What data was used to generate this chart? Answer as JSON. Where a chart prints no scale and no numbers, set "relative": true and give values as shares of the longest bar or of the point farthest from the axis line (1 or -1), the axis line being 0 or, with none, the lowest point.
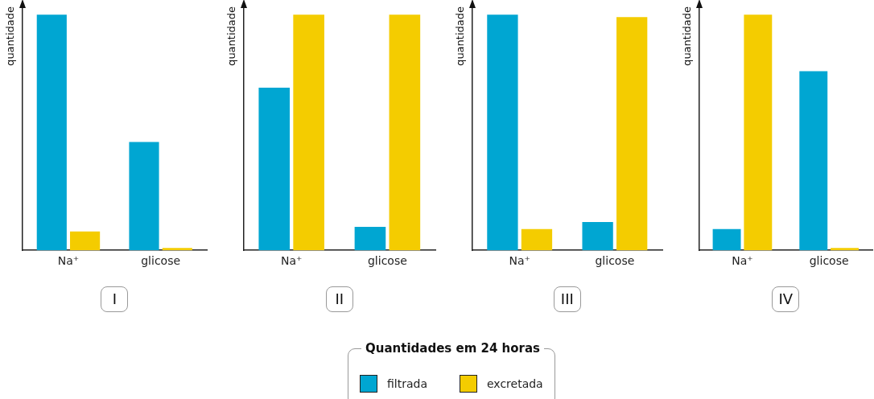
{
  "chart_data": [
    {
      "type": "bar",
      "relative": true,
      "ylabel": "quantidade",
      "xlabel": "I",
      "categories": [
        "Na⁺",
        "glicose"
      ],
      "legend": "bottom",
      "legend_title": "Quantidades em 24 horas",
      "series": [
        {
          "name": "filtrada",
          "color": "#00a6d2",
          "values": [
            1,
            0.46
          ]
        },
        {
          "name": "excretada",
          "color": "#f4cc00",
          "values": [
            0.08,
            0.01
          ]
        }
      ]
    },
    {
      "type": "bar",
      "relative": true,
      "ylabel": "quantidade",
      "xlabel": "II",
      "categories": [
        "Na⁺",
        "glicose"
      ],
      "series": [
        {
          "color": "#00a6d2",
          "values": [
            0.69,
            0.1
          ]
        },
        {
          "color": "#f4cc00",
          "values": [
            1,
            1
          ]
        }
      ]
    },
    {
      "type": "bar",
      "relative": true,
      "ylabel": "quantidade",
      "xlabel": "III",
      "categories": [
        "Na⁺",
        "glicose"
      ],
      "series": [
        {
          "color": "#00a6d2",
          "values": [
            1,
            0.12
          ]
        },
        {
          "color": "#f4cc00",
          "values": [
            0.09,
            0.99
          ]
        }
      ]
    },
    {
      "type": "bar",
      "relative": true,
      "ylabel": "quantidade",
      "xlabel": "IV",
      "categories": [
        "Na⁺",
        "glicose"
      ],
      "series": [
        {
          "color": "#00a6d2",
          "values": [
            0.09,
            0.76
          ]
        },
        {
          "color": "#f4cc00",
          "values": [
            1,
            0.01
          ]
        }
      ]
    }
  ]
}
